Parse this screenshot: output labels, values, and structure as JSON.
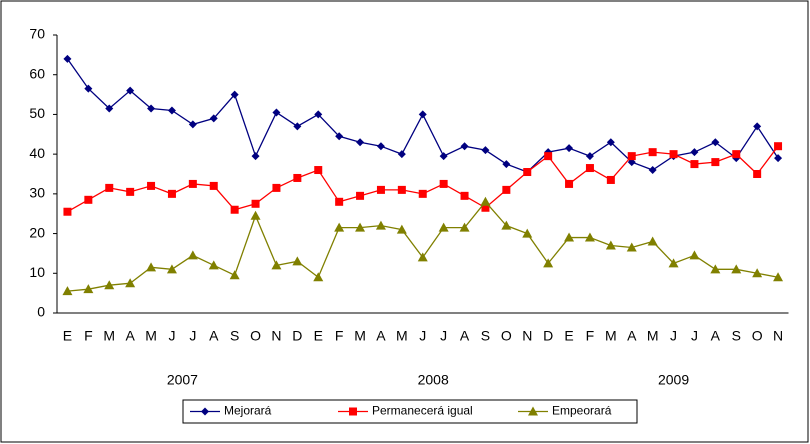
{
  "chart_data": {
    "type": "line",
    "categories": [
      "E",
      "F",
      "M",
      "A",
      "M",
      "J",
      "J",
      "A",
      "S",
      "O",
      "N",
      "D",
      "E",
      "F",
      "M",
      "A",
      "M",
      "J",
      "J",
      "A",
      "S",
      "O",
      "N",
      "D",
      "E",
      "F",
      "M",
      "A",
      "M",
      "J",
      "J",
      "A",
      "S",
      "O",
      "N"
    ],
    "years": [
      "2007",
      "2008",
      "2009"
    ],
    "series": [
      {
        "name": "Mejorará",
        "color": "#000080",
        "marker": "diamond",
        "values": [
          64,
          56.5,
          51.5,
          56,
          51.5,
          51,
          47.5,
          49,
          55,
          39.5,
          50.5,
          47,
          50,
          44.5,
          43,
          42,
          40,
          50,
          39.5,
          42,
          41,
          37.5,
          35.5,
          40.5,
          41.5,
          39.5,
          43,
          38,
          36,
          39.5,
          40.5,
          43,
          39,
          47,
          39
        ]
      },
      {
        "name": "Permanecerá igual",
        "color": "#ff0000",
        "marker": "square",
        "values": [
          25.5,
          28.5,
          31.5,
          30.5,
          32,
          30,
          32.5,
          32,
          26,
          27.5,
          31.5,
          34,
          36,
          28,
          29.5,
          31,
          31,
          30,
          32.5,
          29.5,
          26.5,
          31,
          35.5,
          39.5,
          32.5,
          36.5,
          33.5,
          39.5,
          40.5,
          40,
          37.5,
          38,
          40,
          35,
          42
        ]
      },
      {
        "name": "Empeorará",
        "color": "#808000",
        "marker": "triangle",
        "values": [
          5.5,
          6,
          7,
          7.5,
          11.5,
          11,
          14.5,
          12,
          9.5,
          24.5,
          12,
          13,
          9,
          21.5,
          21.5,
          22,
          21,
          14,
          21.5,
          21.5,
          28,
          22,
          20,
          12.5,
          19,
          19,
          17,
          16.5,
          18,
          12.5,
          14.5,
          11,
          11,
          10,
          9
        ]
      }
    ],
    "ylim": [
      0,
      70
    ],
    "yticks": [
      0,
      10,
      20,
      30,
      40,
      50,
      60,
      70
    ],
    "grid": false,
    "legend": "bottom"
  }
}
